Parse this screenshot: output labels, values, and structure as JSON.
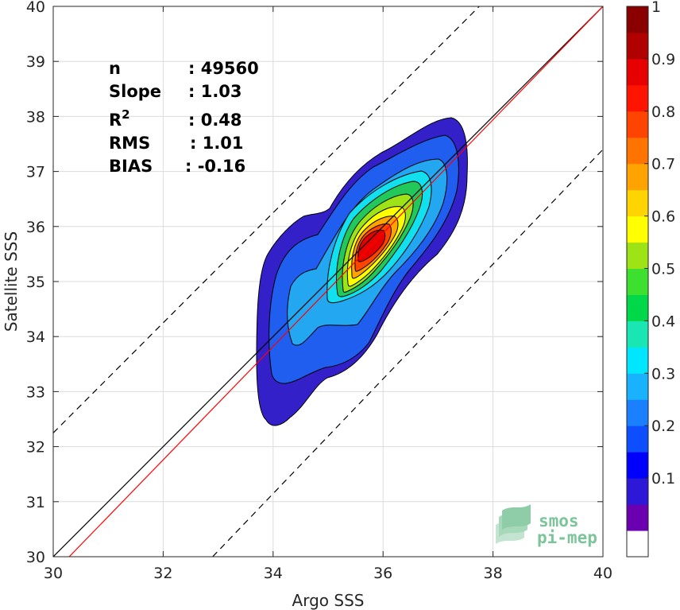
{
  "chart_data": {
    "type": "heatmap",
    "subtype": "filled-contour density scatter",
    "title": "",
    "xlabel": "Argo SSS",
    "ylabel": "Satellite SSS",
    "xlim": [
      30,
      40
    ],
    "ylim": [
      30,
      40
    ],
    "x_ticks": [
      "30",
      "32",
      "34",
      "36",
      "38",
      "40"
    ],
    "y_ticks": [
      "30",
      "31",
      "32",
      "33",
      "34",
      "35",
      "36",
      "37",
      "38",
      "39",
      "40"
    ],
    "grid": true,
    "stats": [
      {
        "label": "n",
        "value": ": 49560"
      },
      {
        "label": "Slope",
        "value": ": 1.03"
      },
      {
        "label": "R",
        "sup": "2",
        "value": ": 0.48"
      },
      {
        "label": "RMS",
        "value": ": 1.01"
      },
      {
        "label": "BIAS",
        "value": ": -0.16"
      }
    ],
    "lines": [
      {
        "kind": "identity",
        "color": "#000000",
        "dash": "solid",
        "points": [
          [
            30,
            30
          ],
          [
            40,
            40
          ]
        ]
      },
      {
        "kind": "regression",
        "color": "#ff0000",
        "dash": "solid",
        "points": [
          [
            30,
            29.7
          ],
          [
            40,
            40
          ]
        ]
      },
      {
        "kind": "upper-bound",
        "color": "#000000",
        "dash": "dashed",
        "points": [
          [
            30,
            32.25
          ],
          [
            37.75,
            40
          ]
        ]
      },
      {
        "kind": "lower-bound",
        "color": "#000000",
        "dash": "dashed",
        "points": [
          [
            32.9,
            30
          ],
          [
            40,
            37.4
          ]
        ]
      }
    ],
    "density_peak": {
      "x": 35.8,
      "y": 35.8
    },
    "contour_levels": [
      0.05,
      0.1,
      0.2,
      0.3,
      0.4,
      0.5,
      0.6,
      0.7,
      0.8,
      0.9
    ],
    "colorbar": {
      "ticks": [
        "0.1",
        "0.2",
        "0.3",
        "0.4",
        "0.5",
        "0.6",
        "0.7",
        "0.8",
        "0.9",
        "1"
      ],
      "tick_values": [
        0.1,
        0.2,
        0.3,
        0.4,
        0.5,
        0.6,
        0.7,
        0.8,
        0.9,
        1.0
      ],
      "colors": [
        "#ffffff",
        "#6a00b0",
        "#2d18d8",
        "#0000ff",
        "#0d4fff",
        "#1a80ff",
        "#19b2ff",
        "#00e6ff",
        "#19e6b3",
        "#00d84a",
        "#3de02e",
        "#9ee316",
        "#ffff00",
        "#ffd400",
        "#ffa300",
        "#ff7300",
        "#ff4400",
        "#ff1400",
        "#e60000",
        "#b00000",
        "#8a0000"
      ]
    }
  },
  "logo": {
    "line1": "smos",
    "line2": "pi-mep"
  }
}
